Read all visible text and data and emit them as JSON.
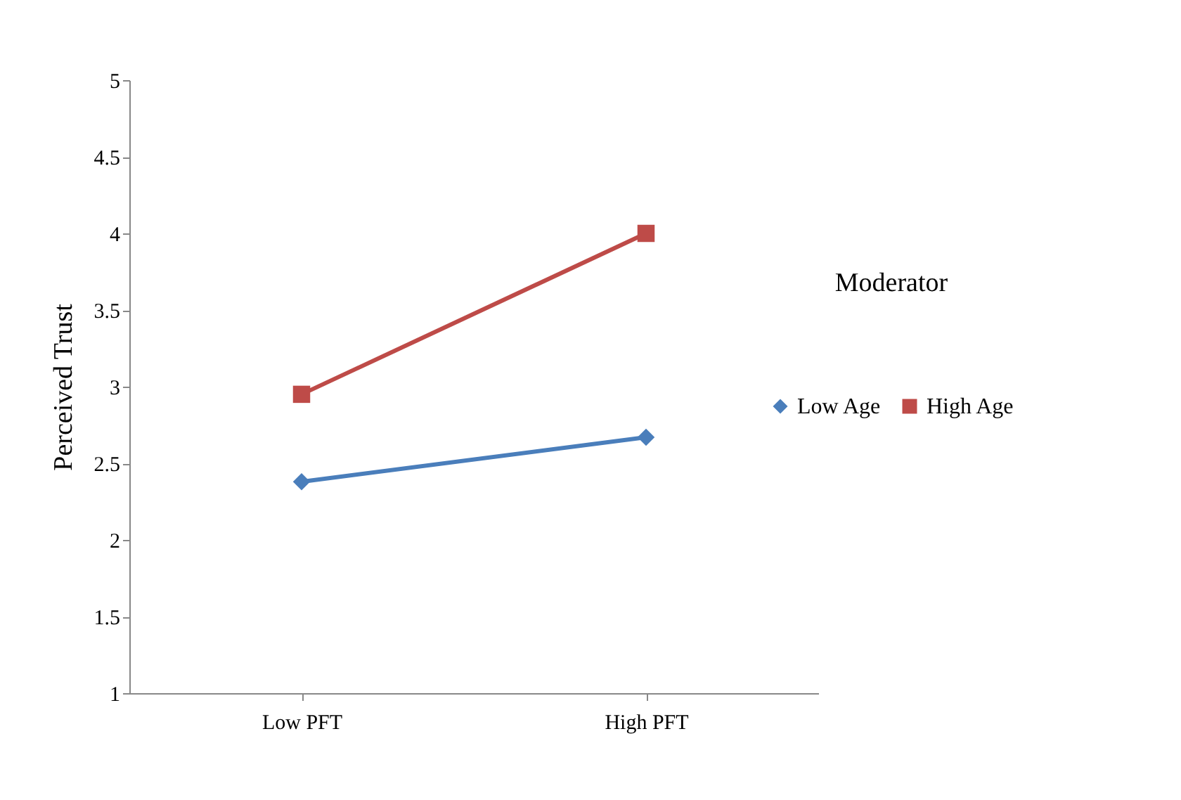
{
  "chart_data": {
    "type": "line",
    "ylabel": "Perceived Trust",
    "categories": [
      "Low PFT",
      "High PFT"
    ],
    "series": [
      {
        "name": "Low Age",
        "color": "#4a7ebb",
        "marker": "diamond",
        "values": [
          2.38,
          2.67
        ]
      },
      {
        "name": "High Age",
        "color": "#be4b48",
        "marker": "square",
        "values": [
          2.95,
          4.0
        ]
      }
    ],
    "ylim": [
      1,
      5
    ],
    "yticks": [
      1,
      1.5,
      2,
      2.5,
      3,
      3.5,
      4,
      4.5,
      5
    ],
    "legend": "right",
    "legend_title": "Moderator"
  }
}
